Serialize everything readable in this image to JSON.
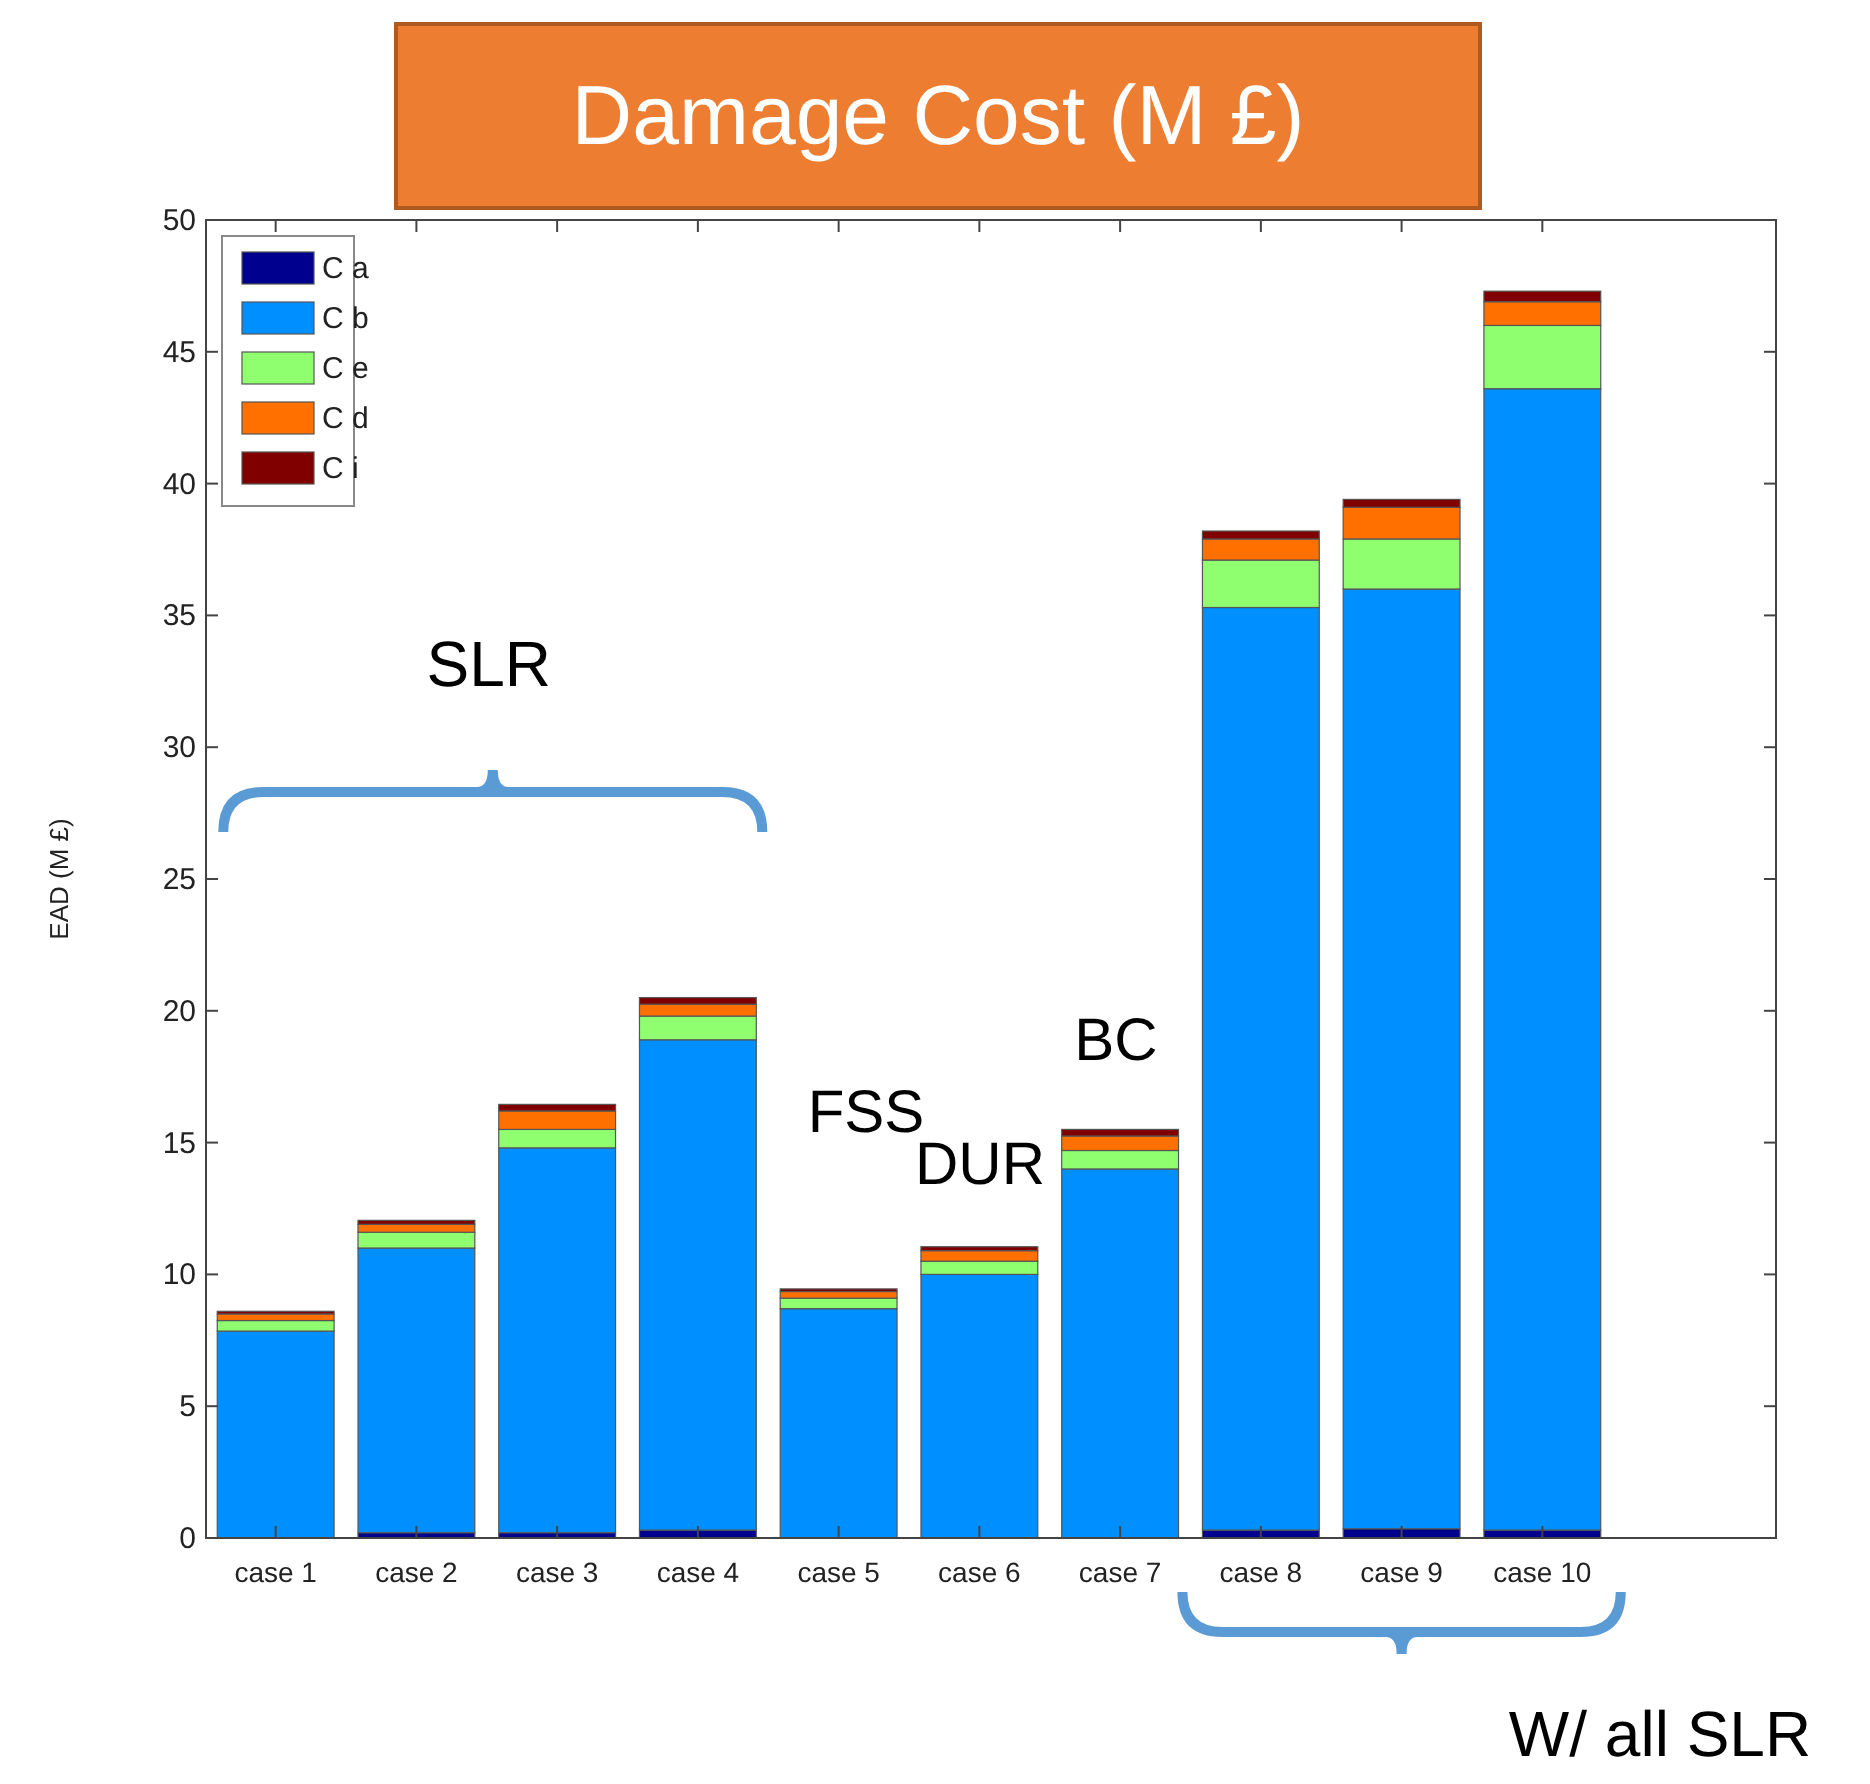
{
  "chart_data": {
    "type": "bar",
    "stacked": true,
    "title": "Damage Cost (M £)",
    "ylabel": "EAD (M £)",
    "categories": [
      "case 1",
      "case 2",
      "case 3",
      "case 4",
      "case 5",
      "case 6",
      "case 7",
      "case 8",
      "case 9",
      "case 10"
    ],
    "series": [
      {
        "name": "C a",
        "color": "#00008f",
        "values": [
          null,
          0.2,
          0.2,
          0.3,
          null,
          null,
          null,
          0.3,
          0.35,
          0.3
        ]
      },
      {
        "name": "C b",
        "color": "#008fff",
        "values": [
          7.85,
          10.8,
          14.6,
          18.6,
          8.7,
          10.0,
          14.0,
          35.0,
          35.65,
          43.3
        ]
      },
      {
        "name": "C e",
        "color": "#8fff70",
        "values": [
          0.4,
          0.6,
          0.7,
          0.9,
          0.4,
          0.5,
          0.7,
          1.8,
          1.9,
          2.4
        ]
      },
      {
        "name": "C d",
        "color": "#ff7000",
        "values": [
          0.25,
          0.3,
          0.7,
          0.45,
          0.25,
          0.4,
          0.55,
          0.8,
          1.2,
          0.9
        ]
      },
      {
        "name": "C i",
        "color": "#800000",
        "values": [
          0.1,
          0.15,
          0.25,
          0.25,
          0.1,
          0.15,
          0.25,
          0.3,
          0.3,
          0.4
        ]
      }
    ],
    "ylim": [
      0,
      50
    ],
    "yticks": [
      0,
      5,
      10,
      15,
      20,
      25,
      30,
      35,
      40,
      45,
      50
    ],
    "legend": "top left",
    "grid": false,
    "annotations": [
      "SLR",
      "FSS",
      "DUR",
      "BC",
      "W/ all SLR"
    ]
  }
}
